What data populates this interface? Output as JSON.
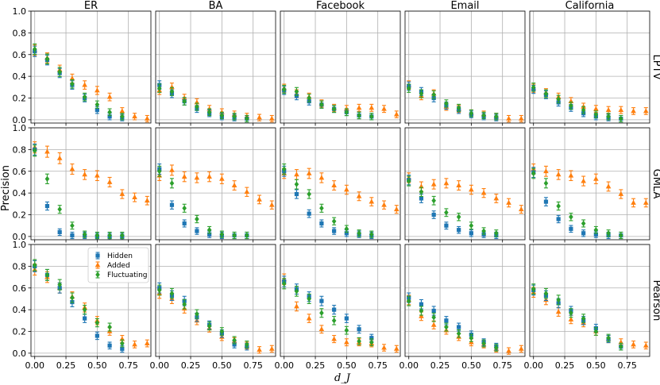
{
  "chart_data": {
    "type": "scatter",
    "columns": [
      "ER",
      "BA",
      "Facebook",
      "Email",
      "California"
    ],
    "rows": [
      "LPTV",
      "GMLA",
      "Pearson"
    ],
    "xlabel": "d_J",
    "ylabel": "Precision",
    "xlim": [
      -0.03,
      0.93
    ],
    "ylim": [
      -0.03,
      1.0
    ],
    "xticks": [
      0.0,
      0.25,
      0.5,
      0.75
    ],
    "xtick_labels": [
      "0.00",
      "0.25",
      "0.50",
      "0.75"
    ],
    "yticks": [
      0.0,
      0.2,
      0.4,
      0.6,
      0.8,
      1.0
    ],
    "ytick_labels": [
      "0.0",
      "0.2",
      "0.4",
      "0.6",
      "0.8",
      "1.0"
    ],
    "legend": {
      "entries": [
        "Hidden",
        "Added",
        "Fluctuating"
      ],
      "location": "upper-left of ER/Pearson panel"
    },
    "series_meta": [
      {
        "name": "Hidden",
        "color": "#1f77b4",
        "marker": "square",
        "x": [
          0.0,
          0.1,
          0.2,
          0.3,
          0.4,
          0.5,
          0.6,
          0.7
        ]
      },
      {
        "name": "Added",
        "color": "#ff7f0e",
        "marker": "triangle",
        "x": [
          0.0,
          0.1,
          0.2,
          0.3,
          0.4,
          0.5,
          0.6,
          0.7,
          0.8,
          0.9
        ]
      },
      {
        "name": "Fluctuating",
        "color": "#2ca02c",
        "marker": "diamond",
        "x": [
          0.0,
          0.1,
          0.2,
          0.3,
          0.4,
          0.5,
          0.6,
          0.7
        ]
      }
    ],
    "panels": [
      {
        "row": "LPTV",
        "col": "ER",
        "Hidden": [
          0.63,
          0.55,
          0.43,
          0.32,
          0.2,
          0.09,
          0.03,
          0.02
        ],
        "Added": [
          0.64,
          0.57,
          0.46,
          0.38,
          0.32,
          0.27,
          0.21,
          0.08,
          0.03,
          0.01
        ],
        "Fluctuating": [
          0.65,
          0.56,
          0.44,
          0.33,
          0.21,
          0.14,
          0.07,
          0.03
        ]
      },
      {
        "row": "LPTV",
        "col": "BA",
        "Hidden": [
          0.32,
          0.24,
          0.17,
          0.1,
          0.06,
          0.03,
          0.02,
          0.01
        ],
        "Added": [
          0.27,
          0.3,
          0.2,
          0.16,
          0.1,
          0.07,
          0.05,
          0.03,
          0.02,
          0.01
        ],
        "Fluctuating": [
          0.29,
          0.26,
          0.17,
          0.12,
          0.07,
          0.04,
          0.03,
          0.01
        ]
      },
      {
        "row": "LPTV",
        "col": "Facebook",
        "Hidden": [
          0.27,
          0.22,
          0.17,
          0.14,
          0.1,
          0.07,
          0.04,
          0.03
        ],
        "Added": [
          0.29,
          0.24,
          0.21,
          0.15,
          0.11,
          0.1,
          0.11,
          0.11,
          0.1,
          0.05
        ],
        "Fluctuating": [
          0.28,
          0.26,
          0.2,
          0.14,
          0.1,
          0.07,
          0.04,
          0.03
        ]
      },
      {
        "row": "LPTV",
        "col": "Email",
        "Hidden": [
          0.31,
          0.26,
          0.2,
          0.13,
          0.09,
          0.05,
          0.03,
          0.02
        ],
        "Added": [
          0.32,
          0.22,
          0.24,
          0.12,
          0.1,
          0.06,
          0.05,
          0.03,
          0.01,
          0.01
        ],
        "Fluctuating": [
          0.29,
          0.24,
          0.23,
          0.15,
          0.11,
          0.06,
          0.04,
          0.03
        ]
      },
      {
        "row": "LPTV",
        "col": "California",
        "Hidden": [
          0.28,
          0.23,
          0.16,
          0.11,
          0.06,
          0.03,
          0.02,
          0.01
        ],
        "Added": [
          0.29,
          0.25,
          0.21,
          0.17,
          0.12,
          0.1,
          0.09,
          0.09,
          0.08,
          0.08
        ],
        "Fluctuating": [
          0.3,
          0.24,
          0.19,
          0.13,
          0.09,
          0.05,
          0.03,
          0.01
        ]
      },
      {
        "row": "GMLA",
        "col": "ER",
        "Hidden": [
          0.8,
          0.28,
          0.04,
          0.01,
          0.01,
          0.0,
          0.0,
          0.0
        ],
        "Added": [
          0.82,
          0.78,
          0.72,
          0.62,
          0.57,
          0.56,
          0.5,
          0.39,
          0.36,
          0.33
        ],
        "Fluctuating": [
          0.79,
          0.53,
          0.25,
          0.1,
          0.02,
          0.01,
          0.01,
          0.01
        ]
      },
      {
        "row": "GMLA",
        "col": "BA",
        "Hidden": [
          0.62,
          0.29,
          0.12,
          0.05,
          0.02,
          0.01,
          0.01,
          0.01
        ],
        "Added": [
          0.56,
          0.61,
          0.55,
          0.54,
          0.55,
          0.53,
          0.47,
          0.41,
          0.34,
          0.29
        ],
        "Fluctuating": [
          0.6,
          0.49,
          0.26,
          0.16,
          0.06,
          0.02,
          0.01,
          0.01
        ]
      },
      {
        "row": "GMLA",
        "col": "Facebook",
        "Hidden": [
          0.6,
          0.39,
          0.21,
          0.12,
          0.05,
          0.03,
          0.02,
          0.01
        ],
        "Added": [
          0.58,
          0.57,
          0.58,
          0.54,
          0.47,
          0.43,
          0.37,
          0.32,
          0.29,
          0.25
        ],
        "Fluctuating": [
          0.62,
          0.48,
          0.39,
          0.26,
          0.14,
          0.07,
          0.03,
          0.02
        ]
      },
      {
        "row": "GMLA",
        "col": "Email",
        "Hidden": [
          0.52,
          0.35,
          0.2,
          0.1,
          0.06,
          0.03,
          0.02,
          0.01
        ],
        "Added": [
          0.54,
          0.46,
          0.48,
          0.49,
          0.47,
          0.43,
          0.4,
          0.35,
          0.31,
          0.25
        ],
        "Fluctuating": [
          0.51,
          0.41,
          0.33,
          0.22,
          0.18,
          0.1,
          0.05,
          0.03
        ]
      },
      {
        "row": "GMLA",
        "col": "California",
        "Hidden": [
          0.59,
          0.32,
          0.16,
          0.07,
          0.03,
          0.02,
          0.01,
          0.01
        ],
        "Added": [
          0.62,
          0.6,
          0.57,
          0.56,
          0.51,
          0.53,
          0.46,
          0.39,
          0.31,
          0.31
        ],
        "Fluctuating": [
          0.58,
          0.49,
          0.28,
          0.18,
          0.12,
          0.06,
          0.03,
          0.01
        ]
      },
      {
        "row": "Pearson",
        "col": "ER",
        "Hidden": [
          0.8,
          0.72,
          0.6,
          0.47,
          0.32,
          0.16,
          0.07,
          0.04
        ],
        "Added": [
          0.77,
          0.7,
          0.6,
          0.52,
          0.42,
          0.3,
          0.2,
          0.13,
          0.08,
          0.09
        ],
        "Fluctuating": [
          0.81,
          0.72,
          0.63,
          0.51,
          0.4,
          0.28,
          0.24,
          0.09
        ]
      },
      {
        "row": "Pearson",
        "col": "BA",
        "Hidden": [
          0.6,
          0.53,
          0.48,
          0.33,
          0.26,
          0.18,
          0.08,
          0.06
        ],
        "Added": [
          0.55,
          0.5,
          0.41,
          0.3,
          0.23,
          0.15,
          0.11,
          0.07,
          0.03,
          0.04
        ],
        "Fluctuating": [
          0.58,
          0.55,
          0.45,
          0.36,
          0.25,
          0.2,
          0.12,
          0.08
        ]
      },
      {
        "row": "Pearson",
        "col": "Facebook",
        "Hidden": [
          0.66,
          0.59,
          0.52,
          0.48,
          0.4,
          0.32,
          0.22,
          0.14
        ],
        "Added": [
          0.68,
          0.43,
          0.32,
          0.22,
          0.13,
          0.1,
          0.1,
          0.09,
          0.05,
          0.04
        ],
        "Fluctuating": [
          0.64,
          0.57,
          0.5,
          0.37,
          0.3,
          0.21,
          0.11,
          0.1
        ]
      },
      {
        "row": "Pearson",
        "col": "Email",
        "Hidden": [
          0.51,
          0.45,
          0.39,
          0.3,
          0.24,
          0.17,
          0.1,
          0.06
        ],
        "Added": [
          0.49,
          0.34,
          0.26,
          0.21,
          0.15,
          0.1,
          0.08,
          0.04,
          0.02,
          0.04
        ],
        "Fluctuating": [
          0.48,
          0.39,
          0.33,
          0.24,
          0.18,
          0.14,
          0.09,
          0.05
        ]
      },
      {
        "row": "Pearson",
        "col": "California",
        "Hidden": [
          0.58,
          0.53,
          0.46,
          0.39,
          0.3,
          0.23,
          0.13,
          0.06
        ],
        "Added": [
          0.56,
          0.49,
          0.38,
          0.31,
          0.28,
          0.2,
          0.13,
          0.1,
          0.08,
          0.07
        ],
        "Fluctuating": [
          0.59,
          0.55,
          0.49,
          0.37,
          0.32,
          0.2,
          0.14,
          0.06
        ]
      }
    ]
  }
}
